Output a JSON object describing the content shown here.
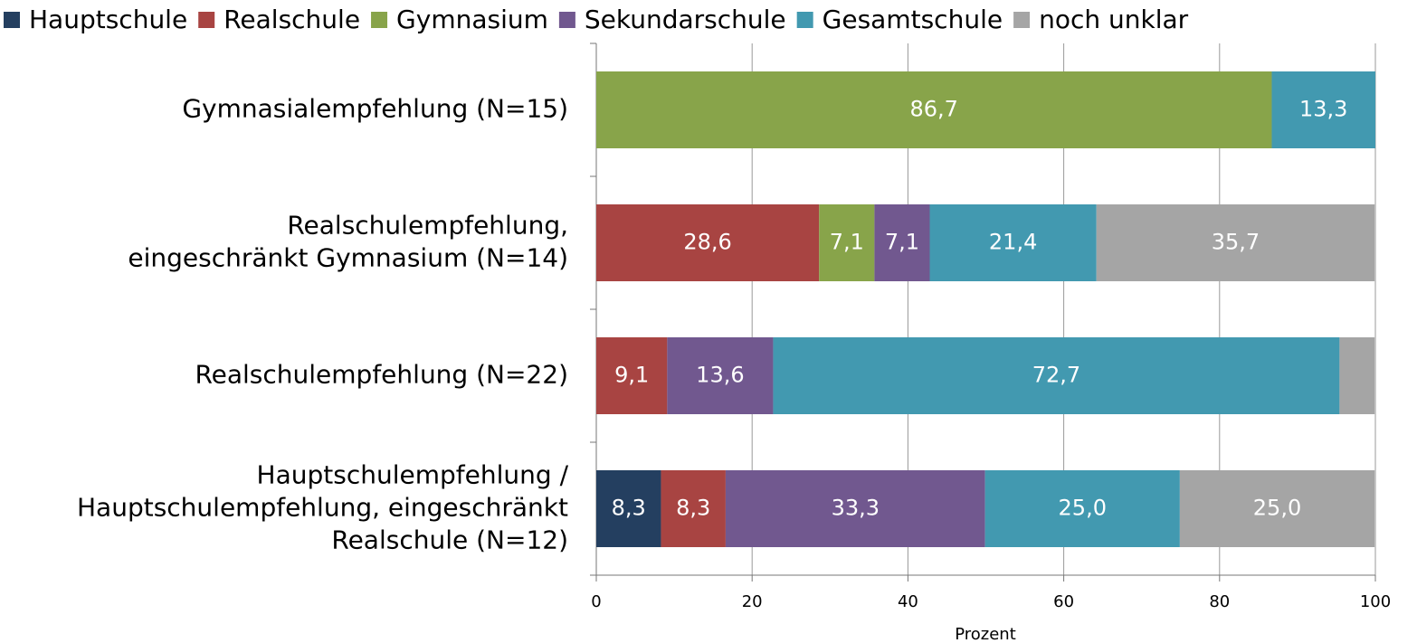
{
  "chart_data": {
    "type": "stacked-barh",
    "categories": [
      [
        "Gymnasialempfehlung (N=15)"
      ],
      [
        "Realschulempfehlung,",
        "eingeschränkt Gymnasium (N=14)"
      ],
      [
        "Realschulempfehlung (N=22)"
      ],
      [
        "Hauptschulempfehlung /",
        "Hauptschulempfehlung, eingeschränkt",
        "Realschule (N=12)"
      ]
    ],
    "series": [
      {
        "name": "Hauptschule",
        "color": "#243f60",
        "values": [
          null,
          null,
          null,
          8.3
        ],
        "value_labels": [
          null,
          null,
          null,
          "8,3"
        ]
      },
      {
        "name": "Realschule",
        "color": "#a84442",
        "values": [
          null,
          28.6,
          9.1,
          8.3
        ],
        "value_labels": [
          null,
          "28,6",
          "9,1",
          "8,3"
        ]
      },
      {
        "name": "Gymnasium",
        "color": "#88a44a",
        "values": [
          86.7,
          7.1,
          null,
          null
        ],
        "value_labels": [
          "86,7",
          "7,1",
          null,
          null
        ]
      },
      {
        "name": "Sekundarschule",
        "color": "#71588f",
        "values": [
          null,
          7.1,
          13.6,
          33.3
        ],
        "value_labels": [
          null,
          "7,1",
          "13,6",
          "33,3"
        ]
      },
      {
        "name": "Gesamtschule",
        "color": "#4299b0",
        "values": [
          13.3,
          21.4,
          72.7,
          25.0
        ],
        "value_labels": [
          "13,3",
          "21,4",
          "72,7",
          "25,0"
        ]
      },
      {
        "name": "noch unklar",
        "color": "#a5a5a5",
        "values": [
          null,
          35.7,
          4.5,
          25.0
        ],
        "value_labels": [
          null,
          "35,7",
          null,
          "25,0"
        ]
      }
    ],
    "xlim": [
      0,
      100
    ],
    "xticks": [
      0,
      20,
      40,
      60,
      80,
      100
    ],
    "xlabel": "Prozent",
    "grid": true,
    "legend": "top"
  }
}
